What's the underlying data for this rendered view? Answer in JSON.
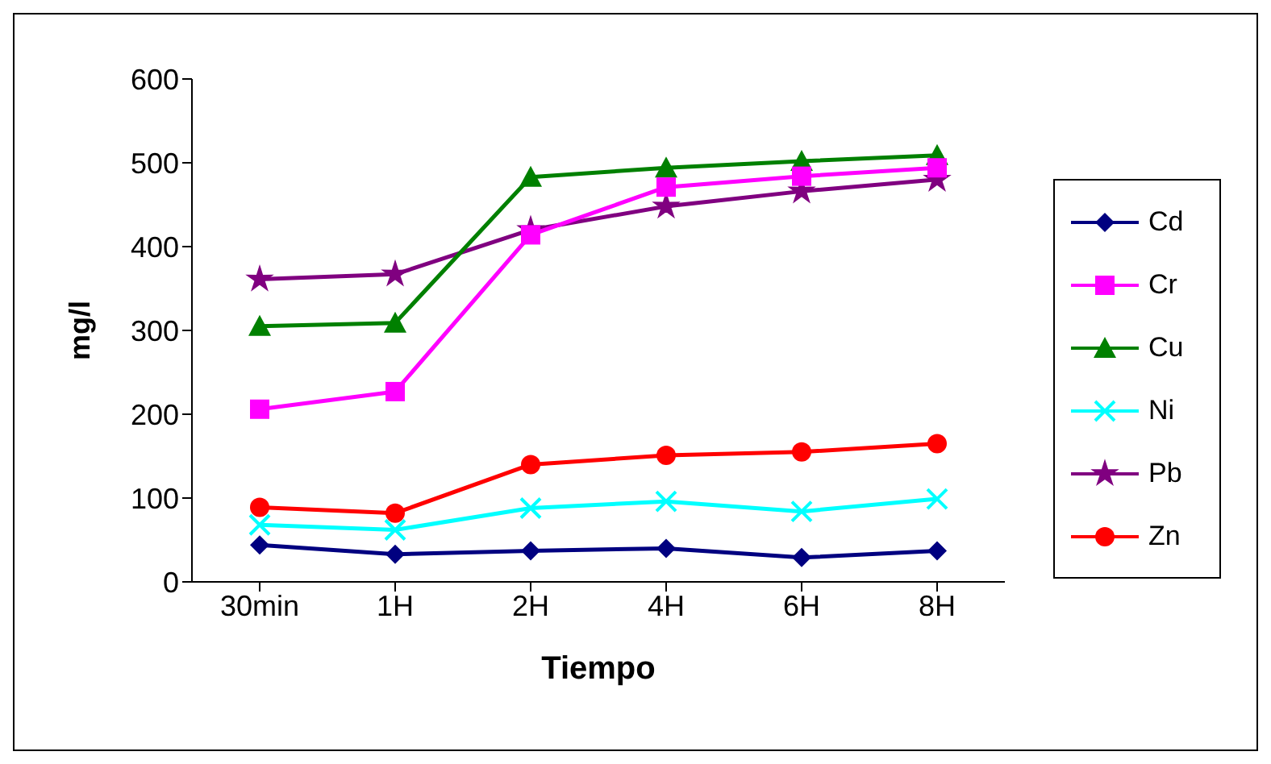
{
  "chart_data": {
    "type": "line",
    "xlabel": "Tiempo",
    "ylabel": "mg/l",
    "categories": [
      "30min",
      "1H",
      "2H",
      "4H",
      "6H",
      "8H"
    ],
    "ylim": [
      0,
      600
    ],
    "yticks": [
      0,
      100,
      200,
      300,
      400,
      500,
      600
    ],
    "grid": false,
    "legend": "right",
    "series": [
      {
        "name": "Cd",
        "color": "#000080",
        "marker": "diamond",
        "values": [
          44,
          33,
          37,
          40,
          29,
          37
        ]
      },
      {
        "name": "Cr",
        "color": "#ff00ff",
        "marker": "square",
        "values": [
          206,
          227,
          414,
          471,
          484,
          494
        ]
      },
      {
        "name": "Cu",
        "color": "#008000",
        "marker": "triangle",
        "values": [
          305,
          309,
          483,
          494,
          502,
          509
        ]
      },
      {
        "name": "Ni",
        "color": "#00ffff",
        "marker": "cross",
        "values": [
          68,
          62,
          88,
          96,
          84,
          99
        ]
      },
      {
        "name": "Pb",
        "color": "#800080",
        "marker": "star",
        "values": [
          361,
          367,
          420,
          448,
          466,
          480
        ]
      },
      {
        "name": "Zn",
        "color": "#ff0000",
        "marker": "circle",
        "values": [
          89,
          82,
          140,
          151,
          155,
          165
        ]
      }
    ]
  }
}
